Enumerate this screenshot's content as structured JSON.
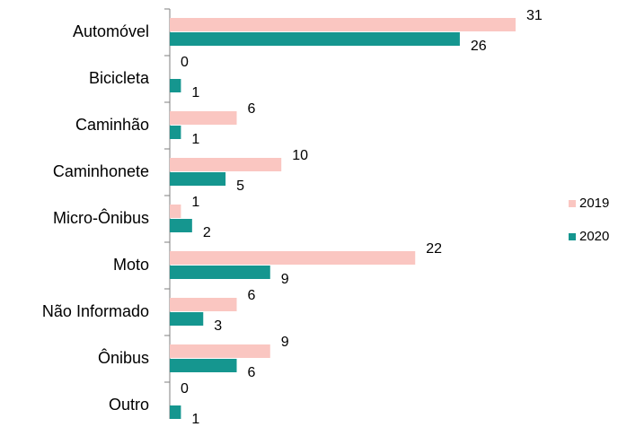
{
  "chart_data": {
    "type": "bar",
    "orientation": "horizontal",
    "categories": [
      "Automóvel",
      "Bicicleta",
      "Caminhão",
      "Caminhonete",
      "Micro-Ônibus",
      "Moto",
      "Não Informado",
      "Ônibus",
      "Outro"
    ],
    "series": [
      {
        "name": "2019",
        "color": "#fac6c1",
        "values": [
          31,
          0,
          6,
          10,
          1,
          22,
          6,
          9,
          0
        ]
      },
      {
        "name": "2020",
        "color": "#15968f",
        "values": [
          26,
          1,
          1,
          5,
          2,
          9,
          3,
          6,
          1
        ]
      }
    ],
    "legend": "right"
  }
}
